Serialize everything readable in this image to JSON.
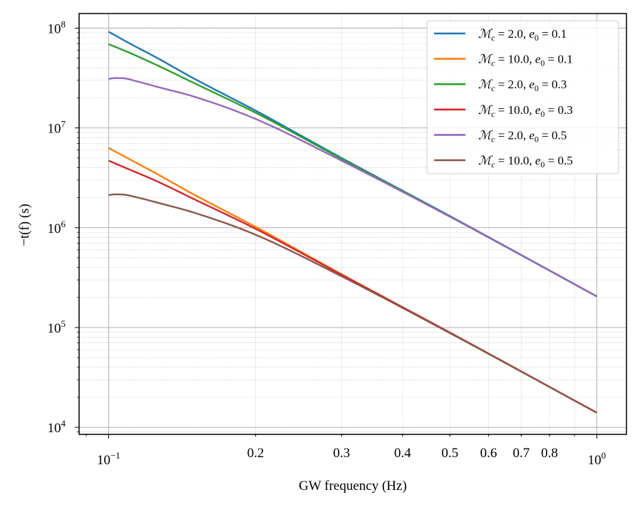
{
  "chart_data": {
    "type": "line",
    "title": "",
    "xlabel": "GW frequency (Hz)",
    "ylabel": "−t(f) (s)",
    "xscale": "log",
    "yscale": "log",
    "xlim": [
      0.087,
      1.15
    ],
    "ylim": [
      8500,
      140000000
    ],
    "grid": "major and minor",
    "legend_position": "top-right",
    "x_ticks": [
      {
        "value": 0.1,
        "base": "10",
        "exp": "−1"
      },
      {
        "value": 0.2,
        "label": "0.2"
      },
      {
        "value": 0.3,
        "label": "0.3"
      },
      {
        "value": 0.4,
        "label": "0.4"
      },
      {
        "value": 0.5,
        "label": "0.5"
      },
      {
        "value": 0.6,
        "label": "0.6"
      },
      {
        "value": 0.7,
        "label": "0.7"
      },
      {
        "value": 0.8,
        "label": "0.8"
      },
      {
        "value": 1.0,
        "base": "10",
        "exp": "0"
      }
    ],
    "y_ticks": [
      {
        "value": 10000,
        "base": "10",
        "exp": "4"
      },
      {
        "value": 100000,
        "base": "10",
        "exp": "5"
      },
      {
        "value": 1000000,
        "base": "10",
        "exp": "6"
      },
      {
        "value": 10000000,
        "base": "10",
        "exp": "7"
      },
      {
        "value": 100000000,
        "base": "10",
        "exp": "8"
      }
    ],
    "series": [
      {
        "name": "Mc = 2.0, e0 = 0.1",
        "mc": "2.0",
        "e0": "0.1",
        "color": "#1f77b4",
        "x": [
          0.1,
          0.11,
          0.125,
          0.15,
          0.2,
          0.3,
          0.5,
          1.0
        ],
        "y": [
          92000000,
          71000000,
          51000000,
          31000000,
          14900000,
          5000000,
          1310000,
          205000
        ]
      },
      {
        "name": "Mc = 10.0, e0 = 0.1",
        "mc": "10.0",
        "e0": "0.1",
        "color": "#ff7f0e",
        "x": [
          0.1,
          0.11,
          0.125,
          0.15,
          0.2,
          0.3,
          0.5,
          1.0
        ],
        "y": [
          6300000,
          4900000,
          3500000,
          2130000,
          1020000,
          342000,
          89000,
          14000
        ]
      },
      {
        "name": "Mc = 2.0, e0 = 0.3",
        "mc": "2.0",
        "e0": "0.3",
        "color": "#2ca02c",
        "x": [
          0.1,
          0.11,
          0.125,
          0.15,
          0.2,
          0.3,
          0.5,
          1.0
        ],
        "y": [
          69000000,
          57000000,
          43000000,
          28000000,
          14200000,
          4900000,
          1300000,
          205000
        ]
      },
      {
        "name": "Mc = 10.0, e0 = 0.3",
        "mc": "10.0",
        "e0": "0.3",
        "color": "#d62728",
        "x": [
          0.1,
          0.11,
          0.125,
          0.15,
          0.2,
          0.3,
          0.5,
          1.0
        ],
        "y": [
          4700000,
          3850000,
          2950000,
          1920000,
          975000,
          338000,
          89000,
          14000
        ]
      },
      {
        "name": "Mc = 2.0, e0 = 0.5",
        "mc": "2.0",
        "e0": "0.5",
        "color": "#9467bd",
        "x": [
          0.1,
          0.103,
          0.107,
          0.115,
          0.125,
          0.15,
          0.2,
          0.3,
          0.5,
          1.0
        ],
        "y": [
          31000000,
          31600000,
          31500000,
          29000000,
          26000000,
          20500000,
          12300000,
          4700000,
          1290000,
          205000
        ]
      },
      {
        "name": "Mc = 10.0, e0 = 0.5",
        "mc": "10.0",
        "e0": "0.5",
        "color": "#8c564b",
        "x": [
          0.1,
          0.103,
          0.107,
          0.115,
          0.125,
          0.15,
          0.2,
          0.3,
          0.5,
          1.0
        ],
        "y": [
          2120000,
          2160000,
          2150000,
          2000000,
          1800000,
          1410000,
          850000,
          326000,
          88000,
          14000
        ]
      }
    ]
  }
}
